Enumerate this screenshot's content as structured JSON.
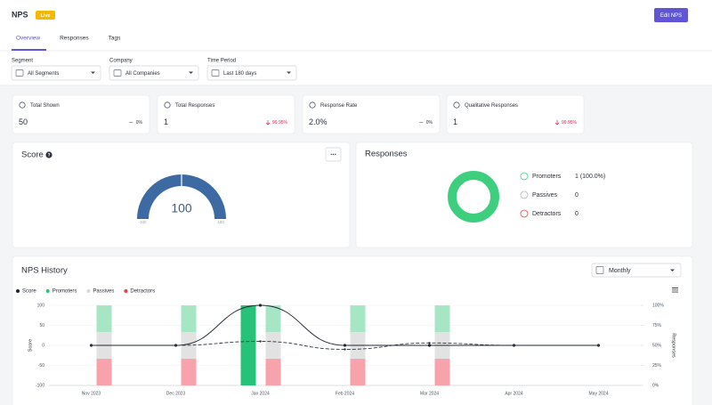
{
  "header": {
    "title": "NPS",
    "status": "Live",
    "button": "Edit NPS"
  },
  "tabs": [
    "Overview",
    "Responses",
    "Tags"
  ],
  "filters": [
    {
      "label": "Segment",
      "value": "All Segments"
    },
    {
      "label": "Company",
      "value": "All Companies"
    },
    {
      "label": "Time Period",
      "value": "Last 180 days"
    }
  ],
  "stats": [
    {
      "title": "Total Shown",
      "value": "50",
      "change": "0%",
      "trend": "flat"
    },
    {
      "title": "Total Responses",
      "value": "1",
      "change": "99.95%",
      "trend": "down"
    },
    {
      "title": "Response Rate",
      "value": "2.0%",
      "change": "0%",
      "trend": "flat"
    },
    {
      "title": "Qualitative Responses",
      "value": "1",
      "change": "99.95%",
      "trend": "down"
    }
  ],
  "score": {
    "title": "Score",
    "value": 100,
    "range": [
      -100,
      100
    ],
    "ticks": [
      -100,
      0,
      100
    ],
    "color": "#3d6aa3"
  },
  "responses": {
    "title": "Responses",
    "items": [
      {
        "name": "Promoters",
        "value": 1,
        "value_label": "1 (100.0%)",
        "color": "#3ecf7e"
      },
      {
        "name": "Passives",
        "value": 0,
        "color": "#b5b5b5"
      },
      {
        "name": "Detractors",
        "value": 0,
        "color": "#ef4444"
      }
    ]
  },
  "history": {
    "title": "NPS History",
    "period": "Monthly",
    "ylabel": "Score",
    "y2label": "Responses",
    "categories": [
      "Nov 2023",
      "Dec 2023",
      "Jan 2024",
      "Feb 2024",
      "Mar 2024",
      "Apr 2024",
      "May 2024"
    ],
    "ylim": [
      -100,
      100
    ],
    "yticks": [
      100,
      50,
      0,
      -50,
      -100
    ],
    "y2lim": [
      0,
      100
    ],
    "y2ticks": [
      {
        "value": 100,
        "label": "100%"
      },
      {
        "value": 75,
        "label": "75%"
      },
      {
        "value": 50,
        "label": "50%"
      },
      {
        "value": 25,
        "label": "25%"
      },
      {
        "value": 0,
        "label": "0%"
      }
    ],
    "score": {
      "name": "Score",
      "color": "#1e2433",
      "values": [
        0,
        0,
        100,
        0,
        0,
        0,
        0
      ]
    },
    "trend": {
      "color": "#2f3542",
      "values": [
        50,
        50,
        55,
        45,
        53,
        50,
        50
      ]
    },
    "stack": [
      {
        "name": "Promoters",
        "color": "#26c27a",
        "faded": "#a6e6c4",
        "values": [
          null,
          null,
          100,
          null,
          null,
          null,
          null
        ],
        "faded_values": [
          33.3,
          33.3,
          33.3,
          33.3,
          33.3,
          null,
          null
        ]
      },
      {
        "name": "Passives",
        "color": "#d9d9d9",
        "faded": "#e2e2e2",
        "values": [
          null,
          null,
          null,
          null,
          null,
          null,
          null
        ],
        "faded_values": [
          33.3,
          33.3,
          33.3,
          33.3,
          33.3,
          null,
          null
        ]
      },
      {
        "name": "Detractors",
        "color": "#f23a4c",
        "faded": "#f8a3ab",
        "values": [
          null,
          null,
          null,
          null,
          null,
          null,
          null
        ],
        "faded_values": [
          33.3,
          33.3,
          33.3,
          33.3,
          33.3,
          null,
          null
        ]
      }
    ]
  }
}
